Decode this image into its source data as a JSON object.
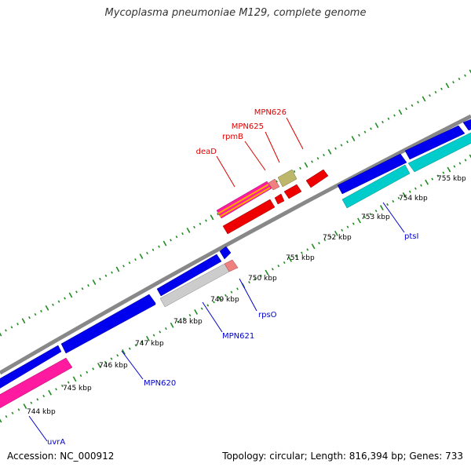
{
  "title": "Mycoplasma pneumoniae M129, complete genome",
  "footer": {
    "accession": "Accession: NC_000912",
    "topology": "Topology: circular; Length: 816,394 bp; Genes: 733"
  },
  "colors": {
    "backbone": "#808080",
    "tick": "#228b22",
    "forward_gene": "#0000ee",
    "reverse_gene": "#ee0000",
    "label_forward": "#0000cc",
    "label_reverse": "#dd0000"
  },
  "ticks": [
    {
      "label": "744 kbp"
    },
    {
      "label": "745 kbp"
    },
    {
      "label": "746 kbp"
    },
    {
      "label": "747 kbp"
    },
    {
      "label": "748 kbp"
    },
    {
      "label": "749 kbp"
    },
    {
      "label": "750 kbp"
    },
    {
      "label": "751 kbp"
    },
    {
      "label": "752 kbp"
    },
    {
      "label": "753 kbp"
    },
    {
      "label": "754 kbp"
    },
    {
      "label": "755 kbp"
    }
  ],
  "gene_labels": [
    {
      "name": "uvrA",
      "strand": "forward"
    },
    {
      "name": "MPN620",
      "strand": "forward"
    },
    {
      "name": "MPN621",
      "strand": "forward"
    },
    {
      "name": "rpsO",
      "strand": "forward"
    },
    {
      "name": "ptsI",
      "strand": "forward"
    },
    {
      "name": "deaD",
      "strand": "reverse"
    },
    {
      "name": "rpmB",
      "strand": "reverse"
    },
    {
      "name": "MPN625",
      "strand": "reverse"
    },
    {
      "name": "MPN626",
      "strand": "reverse"
    }
  ]
}
